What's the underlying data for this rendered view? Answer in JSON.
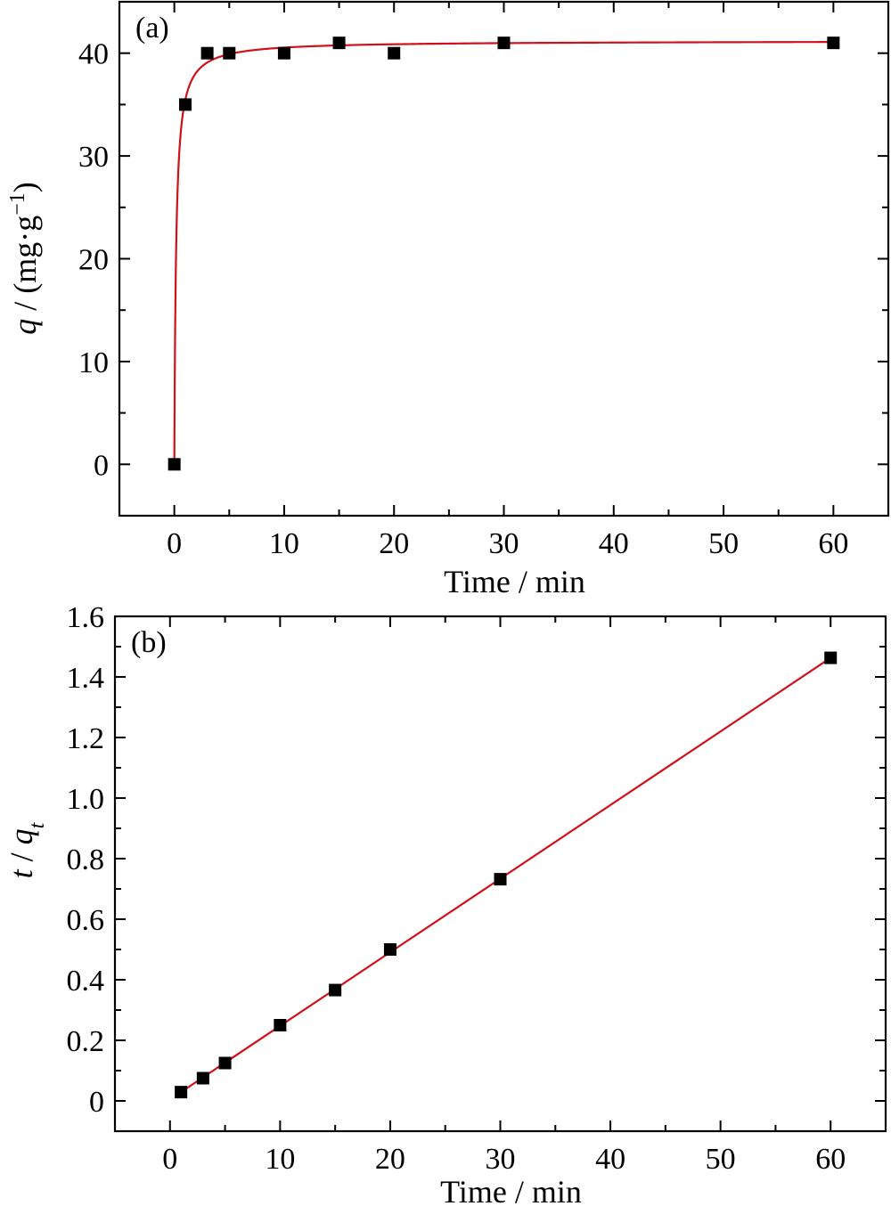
{
  "chart_data": [
    {
      "type": "scatter",
      "panel_label": "(a)",
      "xlabel": "Time / min",
      "ylabel": {
        "italic": "q",
        "rest": " / (mg·g",
        "sup": "−1",
        "close": ")"
      },
      "xlim": [
        -5,
        65
      ],
      "ylim": [
        -5,
        45
      ],
      "xticks": [
        0,
        10,
        20,
        30,
        40,
        50,
        60
      ],
      "yticks": [
        0,
        10,
        20,
        30,
        40
      ],
      "xtick_labels": [
        "0",
        "10",
        "20",
        "30",
        "40",
        "50",
        "60"
      ],
      "ytick_labels": [
        "0",
        "10",
        "20",
        "30",
        "40"
      ],
      "series": [
        {
          "kind": "points",
          "x": [
            0,
            1,
            3,
            5,
            10,
            15,
            20,
            30,
            60
          ],
          "y": [
            0,
            35,
            40,
            40,
            40,
            41,
            40,
            41,
            41
          ]
        },
        {
          "kind": "fit",
          "model": "pseudo-second-order",
          "qe": 41.2,
          "k": 0.15,
          "color": "#d0101a"
        }
      ]
    },
    {
      "type": "scatter",
      "panel_label": "(b)",
      "xlabel": "Time / min",
      "ylabel": {
        "italic": "t",
        "rest": " / ",
        "italic2": "q",
        "sub": "t"
      },
      "xlim": [
        -5,
        65
      ],
      "ylim": [
        -0.1,
        1.6
      ],
      "xticks": [
        0,
        10,
        20,
        30,
        40,
        50,
        60
      ],
      "yticks": [
        0,
        0.2,
        0.4,
        0.6,
        0.8,
        1.0,
        1.2,
        1.4,
        1.6
      ],
      "xtick_labels": [
        "0",
        "10",
        "20",
        "30",
        "40",
        "50",
        "60"
      ],
      "ytick_labels": [
        "0",
        "0.2",
        "0.4",
        "0.6",
        "0.8",
        "1.0",
        "1.2",
        "1.4",
        "1.6"
      ],
      "series": [
        {
          "kind": "points",
          "x": [
            1,
            3,
            5,
            10,
            15,
            20,
            30,
            60
          ],
          "y": [
            0.029,
            0.075,
            0.125,
            0.25,
            0.366,
            0.5,
            0.732,
            1.463
          ]
        },
        {
          "kind": "fit",
          "model": "linear",
          "x": [
            1,
            60
          ],
          "y": [
            0.029,
            1.463
          ],
          "color": "#d0101a"
        }
      ]
    }
  ]
}
